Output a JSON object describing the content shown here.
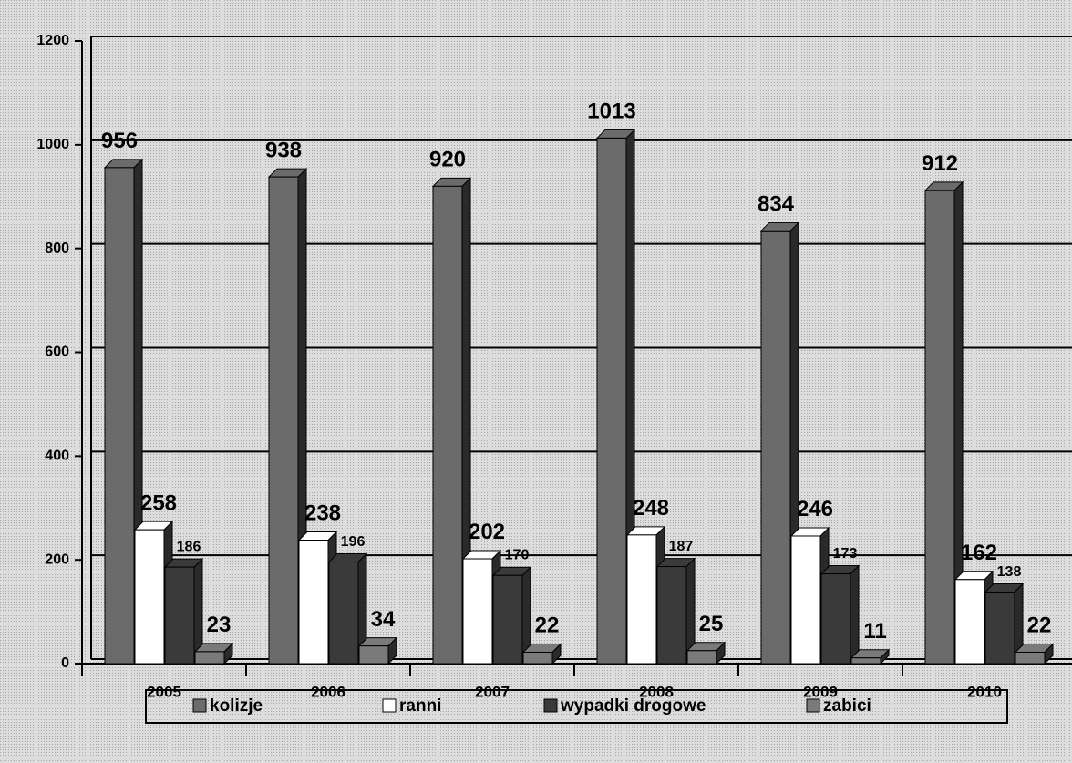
{
  "chart_data": {
    "type": "bar3d",
    "categories": [
      "2005",
      "2006",
      "2007",
      "2008",
      "2009",
      "2010"
    ],
    "series": [
      {
        "name": "kolizje",
        "color": "#6b6b6b",
        "values": [
          956,
          938,
          920,
          1013,
          834,
          912
        ]
      },
      {
        "name": "ranni",
        "color": "#ffffff",
        "values": [
          258,
          238,
          202,
          248,
          246,
          162
        ]
      },
      {
        "name": "wypadki drogowe",
        "color": "#3a3a3a",
        "values": [
          186,
          196,
          170,
          187,
          173,
          138
        ]
      },
      {
        "name": "zabici",
        "color": "#7a7a7a",
        "values": [
          23,
          34,
          22,
          25,
          11,
          22
        ]
      }
    ],
    "ylim": [
      0,
      1200
    ],
    "yticks": [
      0,
      200,
      400,
      600,
      800,
      1000,
      1200
    ],
    "grid": true,
    "legend": "bottom"
  }
}
